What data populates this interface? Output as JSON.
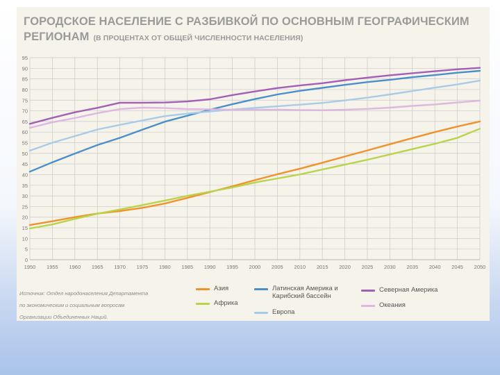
{
  "header": {
    "title_line1": "ГОРОДСКОЕ НАСЕЛЕНИЕ С РАЗБИВКОЙ ПО ОСНОВНЫМ ГЕОГРАФИЧЕСКИМ",
    "title_line2": "РЕГИОНАМ",
    "subtitle": "(В ПРОЦЕНТАХ ОТ ОБЩЕЙ ЧИСЛЕННОСТИ НАСЕЛЕНИЯ)"
  },
  "source": {
    "line1": "Источник: Отдел народонаселения Департамента",
    "line2": "по экономическим и социальным вопросам",
    "line3": "Организации Объединенных Наций."
  },
  "colors": {
    "panel_background": "#f6f3ea",
    "gridline": "#c9c9c9",
    "slide_gradient_bottom": "#a9c3ea"
  },
  "legend": [
    {
      "label_line1": "Азия",
      "label_line2": "",
      "color": "#f0922b"
    },
    {
      "label_line1": "Африка",
      "label_line2": "",
      "color": "#b9d34b"
    },
    {
      "label_line1": "Латинская Америка и",
      "label_line2": "Карибский бассейн",
      "color": "#4b8fc8"
    },
    {
      "label_line1": "Европа",
      "label_line2": "",
      "color": "#a9cbe8"
    },
    {
      "label_line1": "Северная Америка",
      "label_line2": "",
      "color": "#a35fb4"
    },
    {
      "label_line1": "Океания",
      "label_line2": "",
      "color": "#dcb8e0"
    }
  ],
  "chart_data": {
    "type": "line",
    "title": "ГОРОДСКОЕ НАСЕЛЕНИЕ С РАЗБИВКОЙ ПО ОСНОВНЫМ ГЕОГРАФИЧЕСКИМ РЕГИОНАМ",
    "subtitle": "(В ПРОЦЕНТАХ ОТ ОБЩЕЙ ЧИСЛЕННОСТИ НАСЕЛЕНИЯ)",
    "xlabel": "",
    "ylabel": "",
    "x": [
      1950,
      1955,
      1960,
      1965,
      1970,
      1975,
      1980,
      1985,
      1990,
      1995,
      2000,
      2005,
      2010,
      2015,
      2020,
      2025,
      2030,
      2035,
      2040,
      2045,
      2050
    ],
    "x_ticks": [
      "1950",
      "1955",
      "1960",
      "1965",
      "1970",
      "1975",
      "1980",
      "1985",
      "1990",
      "1995",
      "2000",
      "2005",
      "2010",
      "2015",
      "2020",
      "2025",
      "2030",
      "2035",
      "2040",
      "2045",
      "2050"
    ],
    "ylim": [
      0,
      95
    ],
    "y_ticks": [
      0,
      5,
      10,
      15,
      20,
      25,
      30,
      35,
      40,
      45,
      50,
      55,
      60,
      65,
      70,
      75,
      80,
      85,
      90,
      95
    ],
    "grid": true,
    "legend_position": "bottom",
    "series": [
      {
        "name": "Азия",
        "color": "#f0922b",
        "values": [
          16.3,
          18.1,
          20,
          21.7,
          22.9,
          24.4,
          26.4,
          29.1,
          31.8,
          34.5,
          37.4,
          40.2,
          42.8,
          45.6,
          48.5,
          51.4,
          54.3,
          57.2,
          60,
          62.6,
          65
        ]
      },
      {
        "name": "Африка",
        "color": "#b9d34b",
        "values": [
          14.7,
          16.6,
          19.2,
          21.6,
          23.6,
          25.7,
          27.8,
          30,
          32,
          34,
          36.3,
          38.2,
          40.1,
          42.4,
          44.7,
          47,
          49.5,
          52,
          54.5,
          57.3,
          61.6
        ]
      },
      {
        "name": "Латинская Америка и Карибский бассейн",
        "color": "#4b8fc8",
        "values": [
          41.4,
          45.8,
          49.9,
          53.9,
          57.3,
          61.1,
          64.9,
          67.7,
          70.5,
          73.1,
          75.5,
          77.7,
          79.4,
          80.8,
          82.2,
          83.5,
          84.6,
          85.8,
          86.8,
          87.9,
          88.8
        ]
      },
      {
        "name": "Европа",
        "color": "#a9cbe8",
        "values": [
          51.3,
          55,
          58.1,
          61.2,
          63.4,
          65.5,
          67.5,
          68.7,
          69.7,
          70.6,
          71.4,
          72.1,
          72.9,
          73.7,
          74.9,
          76.2,
          77.7,
          79.3,
          80.9,
          82.4,
          84.2
        ]
      },
      {
        "name": "Северная Америка",
        "color": "#a35fb4",
        "values": [
          63.9,
          66.7,
          69.3,
          71.4,
          73.8,
          73.8,
          73.9,
          74.4,
          75.4,
          77.4,
          79.1,
          80.7,
          81.9,
          83,
          84.4,
          85.6,
          86.7,
          87.7,
          88.6,
          89.5,
          90.2
        ]
      },
      {
        "name": "Океания",
        "color": "#dcb8e0",
        "values": [
          62,
          64.6,
          66.6,
          68.9,
          70.8,
          71.5,
          71.3,
          70.8,
          70.7,
          70.5,
          70.5,
          70.5,
          70.4,
          70.3,
          70.5,
          70.9,
          71.5,
          72.3,
          73,
          73.9,
          74.8
        ]
      }
    ]
  }
}
